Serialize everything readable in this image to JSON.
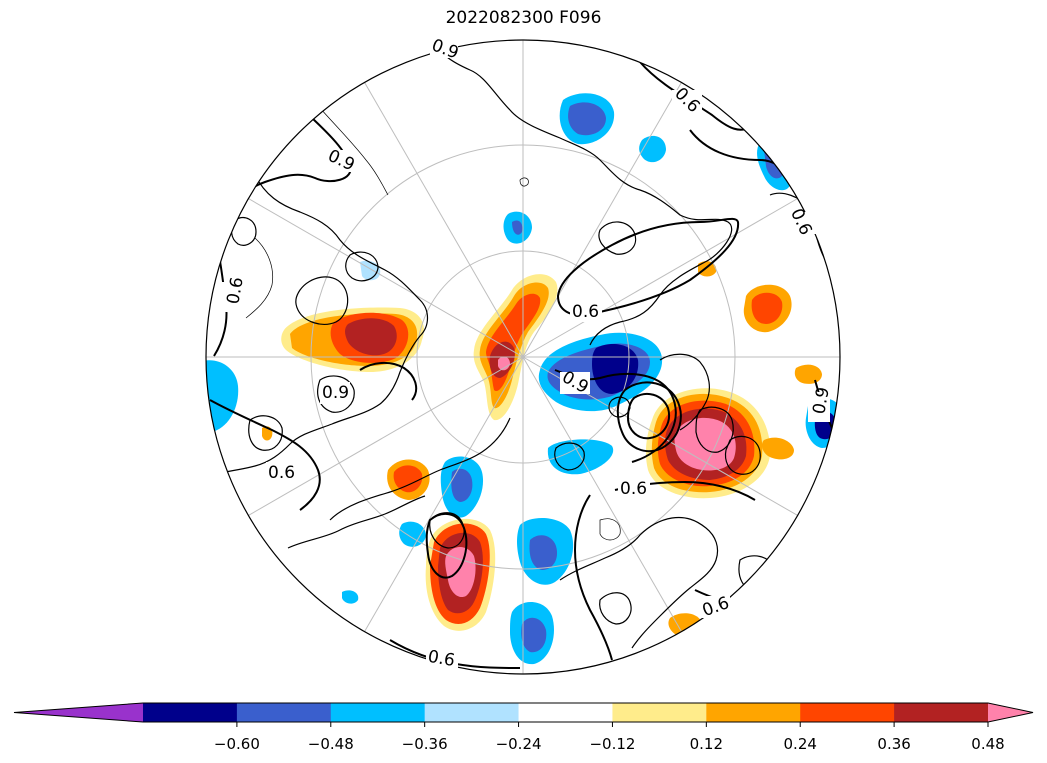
{
  "figure": {
    "title": "2022082300 F096"
  },
  "colorbar": {
    "orientation": "horizontal",
    "extend": "both",
    "levels": [
      -0.6,
      -0.48,
      -0.36,
      -0.24,
      -0.12,
      0.12,
      0.24,
      0.36,
      0.48,
      0.6
    ],
    "tick_labels": [
      "−0.60",
      "−0.48",
      "−0.36",
      "−0.24",
      "−0.12",
      "0.12",
      "0.24",
      "0.36",
      "0.48",
      "0.60"
    ],
    "colors": [
      "#9932cc",
      "#00008b",
      "#3a5fcd",
      "#00bfff",
      "#b0e2ff",
      "#ffffff",
      "#ffec8b",
      "#ffa500",
      "#ff4500",
      "#b22222",
      "#ff82ab"
    ]
  },
  "map": {
    "projection": "north-polar-stereographic",
    "graticule_color": "#bebebe",
    "coastline_color": "#000000",
    "contour_labels": [
      "0.9",
      "0.9",
      "0.6",
      "0.6",
      "0.6",
      "0.6",
      "0.9",
      "0.9",
      "0.9",
      "0.6",
      "0.6",
      "0.6",
      "0.6"
    ]
  }
}
